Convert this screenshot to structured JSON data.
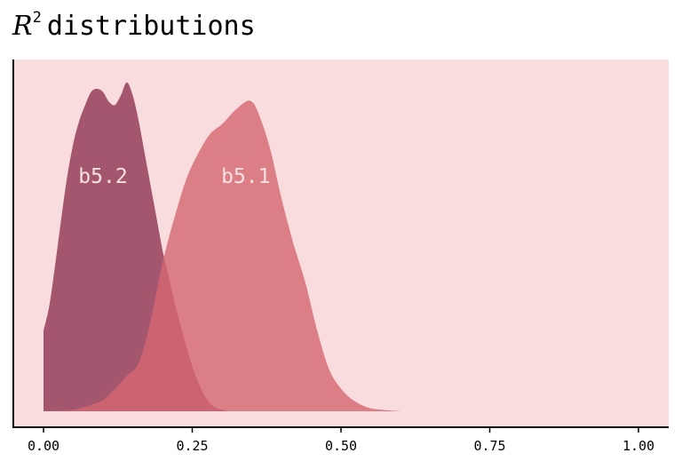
{
  "chart_data": {
    "type": "area",
    "title_symbol": "R",
    "title_superscript": "2",
    "title_text": "distributions",
    "xlabel": "",
    "ylabel": "",
    "xlim": [
      -0.05,
      1.05
    ],
    "ylim": [
      0,
      1.1
    ],
    "x_ticks": [
      "0.00",
      "0.25",
      "0.50",
      "0.75",
      "1.00"
    ],
    "x_tick_values": [
      0,
      0.25,
      0.5,
      0.75,
      1.0
    ],
    "grid": false,
    "legend": "none (direct labels)",
    "background_color": "#f9dcdd",
    "series": [
      {
        "name": "b5.2",
        "color": "#8e3452",
        "label_x": 0.1,
        "label_y": 0.73,
        "points": [
          [
            0.0,
            0.25
          ],
          [
            0.01,
            0.33
          ],
          [
            0.02,
            0.46
          ],
          [
            0.03,
            0.6
          ],
          [
            0.04,
            0.73
          ],
          [
            0.05,
            0.83
          ],
          [
            0.06,
            0.9
          ],
          [
            0.07,
            0.95
          ],
          [
            0.08,
            0.99
          ],
          [
            0.09,
            1.0
          ],
          [
            0.1,
            0.99
          ],
          [
            0.11,
            0.96
          ],
          [
            0.12,
            0.95
          ],
          [
            0.13,
            0.98
          ],
          [
            0.14,
            1.02
          ],
          [
            0.15,
            0.98
          ],
          [
            0.16,
            0.9
          ],
          [
            0.17,
            0.8
          ],
          [
            0.18,
            0.7
          ],
          [
            0.19,
            0.6
          ],
          [
            0.2,
            0.5
          ],
          [
            0.21,
            0.42
          ],
          [
            0.22,
            0.34
          ],
          [
            0.23,
            0.27
          ],
          [
            0.24,
            0.2
          ],
          [
            0.25,
            0.14
          ],
          [
            0.26,
            0.09
          ],
          [
            0.27,
            0.05
          ],
          [
            0.28,
            0.025
          ],
          [
            0.29,
            0.01
          ],
          [
            0.31,
            0.0
          ]
        ]
      },
      {
        "name": "b5.1",
        "color": "#d46670",
        "label_x": 0.34,
        "label_y": 0.73,
        "points": [
          [
            0.0,
            0.0
          ],
          [
            0.05,
            0.005
          ],
          [
            0.08,
            0.02
          ],
          [
            0.1,
            0.035
          ],
          [
            0.12,
            0.07
          ],
          [
            0.14,
            0.11
          ],
          [
            0.16,
            0.15
          ],
          [
            0.18,
            0.28
          ],
          [
            0.2,
            0.46
          ],
          [
            0.22,
            0.6
          ],
          [
            0.24,
            0.72
          ],
          [
            0.26,
            0.8
          ],
          [
            0.28,
            0.86
          ],
          [
            0.3,
            0.89
          ],
          [
            0.32,
            0.93
          ],
          [
            0.34,
            0.96
          ],
          [
            0.35,
            0.96
          ],
          [
            0.36,
            0.93
          ],
          [
            0.38,
            0.82
          ],
          [
            0.4,
            0.66
          ],
          [
            0.42,
            0.52
          ],
          [
            0.44,
            0.4
          ],
          [
            0.46,
            0.25
          ],
          [
            0.48,
            0.13
          ],
          [
            0.5,
            0.07
          ],
          [
            0.52,
            0.035
          ],
          [
            0.54,
            0.015
          ],
          [
            0.56,
            0.006
          ],
          [
            0.6,
            0.0
          ]
        ]
      }
    ]
  }
}
